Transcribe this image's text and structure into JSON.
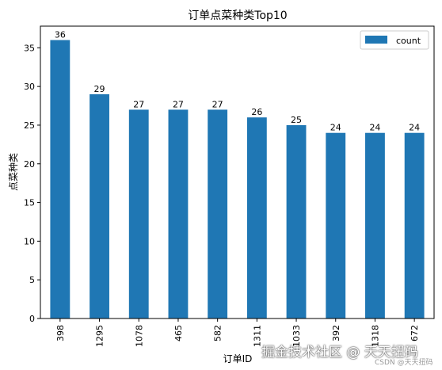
{
  "chart_data": {
    "type": "bar",
    "title": "订单点菜种类Top10",
    "xlabel": "订单ID",
    "ylabel": "点菜种类",
    "categories": [
      "398",
      "1295",
      "1078",
      "465",
      "582",
      "1311",
      "1033",
      "392",
      "1318",
      "672"
    ],
    "series": [
      {
        "name": "count",
        "values": [
          36,
          29,
          27,
          27,
          27,
          26,
          25,
          24,
          24,
          24
        ],
        "color": "#1f77b4"
      }
    ],
    "ylim": [
      0,
      37.8
    ],
    "yticks": [
      0,
      5,
      10,
      15,
      20,
      25,
      30,
      35
    ],
    "legend": "top-right",
    "grid": false
  },
  "watermark": {
    "main": "掘金技术社区 @ 天天扭码",
    "sub": "CSDN @天天扭码"
  }
}
